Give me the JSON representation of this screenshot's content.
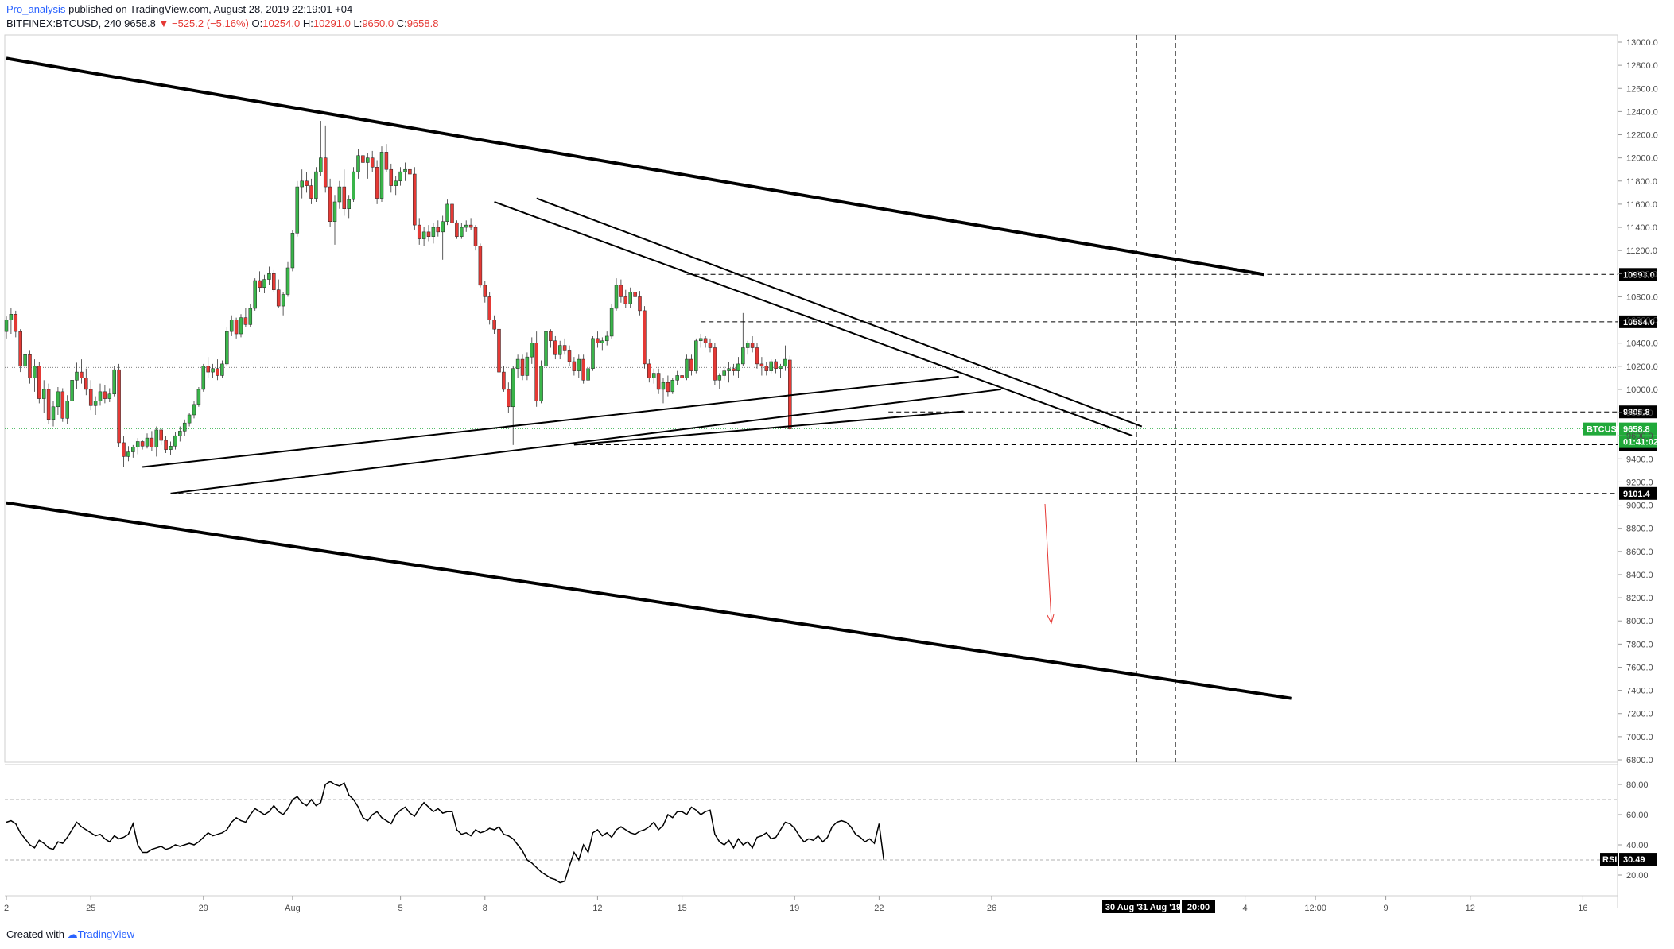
{
  "header": {
    "author": "Pro_analysis",
    "published": "published on TradingView.com, August 28, 2019 22:19:01 +04",
    "symbol": "BITFINEX:BTCUSD, 240",
    "price": "9658.8",
    "change_arrow": "▼",
    "change": "−525.2 (−5.16%)",
    "ohlc": {
      "o_label": "O:",
      "o": "10254.0",
      "h_label": "H:",
      "h": "10291.0",
      "l_label": "L:",
      "l": "9650.0",
      "c_label": "C:",
      "c": "9658.8"
    }
  },
  "footer": {
    "created_with": "Created with",
    "brand": "TradingView"
  },
  "colors": {
    "up": "#26a69a",
    "down": "#ef5350",
    "candle_up": "#3ab54a",
    "candle_down": "#e53935",
    "line": "#000000",
    "price_label": "#21a93a",
    "rsi": "#000000"
  },
  "chart_data": {
    "type": "candlestick",
    "y_axis": {
      "min": 6800,
      "max": 13000,
      "ticks": [
        "13000.0",
        "12800.0",
        "12600.0",
        "12400.0",
        "12200.0",
        "12000.0",
        "11800.0",
        "11600.0",
        "11400.0",
        "11200.0",
        "11000.0",
        "10800.0",
        "10600.0",
        "10400.0",
        "10200.0",
        "10000.0",
        "9800.0",
        "9600.0",
        "9400.0",
        "9200.0",
        "9000.0",
        "8800.0",
        "8600.0",
        "8400.0",
        "8200.0",
        "8000.0",
        "7800.0",
        "7600.0",
        "7400.0",
        "7200.0",
        "7000.0",
        "6800.0"
      ]
    },
    "x_axis": {
      "ticks": [
        {
          "label": "2",
          "i": 0
        },
        {
          "label": "25",
          "i": 18
        },
        {
          "label": "29",
          "i": 42
        },
        {
          "label": "Aug",
          "i": 61
        },
        {
          "label": "5",
          "i": 84
        },
        {
          "label": "8",
          "i": 102
        },
        {
          "label": "12",
          "i": 126
        },
        {
          "label": "15",
          "i": 144
        },
        {
          "label": "19",
          "i": 168
        },
        {
          "label": "22",
          "i": 186
        },
        {
          "label": "26",
          "i": 210
        },
        {
          "label": "4",
          "i": 264
        },
        {
          "label": "12:00",
          "i": 279
        },
        {
          "label": "9",
          "i": 294
        },
        {
          "label": "12",
          "i": 312
        },
        {
          "label": "16",
          "i": 336
        }
      ],
      "date_labels": [
        "30 Aug '19",
        "31 Aug '19",
        "20:00"
      ]
    },
    "candles": [
      [
        10500,
        10630,
        10440,
        10600
      ],
      [
        10600,
        10700,
        10480,
        10650
      ],
      [
        10650,
        10680,
        10450,
        10500
      ],
      [
        10500,
        10520,
        10150,
        10200
      ],
      [
        10200,
        10380,
        10100,
        10300
      ],
      [
        10300,
        10340,
        10050,
        10100
      ],
      [
        10100,
        10260,
        9980,
        10200
      ],
      [
        10200,
        10240,
        9880,
        9920
      ],
      [
        9920,
        10080,
        9800,
        10000
      ],
      [
        10000,
        10050,
        9700,
        9740
      ],
      [
        9740,
        9900,
        9680,
        9850
      ],
      [
        9850,
        10020,
        9780,
        9980
      ],
      [
        9980,
        10010,
        9720,
        9750
      ],
      [
        9750,
        9950,
        9700,
        9900
      ],
      [
        9900,
        10120,
        9860,
        10080
      ],
      [
        10080,
        10230,
        10000,
        10150
      ],
      [
        10150,
        10260,
        10050,
        10100
      ],
      [
        10100,
        10180,
        9950,
        10000
      ],
      [
        10000,
        10080,
        9820,
        9860
      ],
      [
        9860,
        9940,
        9780,
        9900
      ],
      [
        9900,
        10050,
        9860,
        9980
      ],
      [
        9980,
        10040,
        9880,
        9920
      ],
      [
        9920,
        10010,
        9890,
        9960
      ],
      [
        9960,
        10200,
        9940,
        10170
      ],
      [
        10170,
        10220,
        9500,
        9540
      ],
      [
        9540,
        9600,
        9330,
        9420
      ],
      [
        9420,
        9510,
        9380,
        9460
      ],
      [
        9460,
        9520,
        9410,
        9500
      ],
      [
        9500,
        9580,
        9440,
        9550
      ],
      [
        9550,
        9560,
        9480,
        9510
      ],
      [
        9510,
        9620,
        9490,
        9580
      ],
      [
        9580,
        9640,
        9470,
        9500
      ],
      [
        9500,
        9680,
        9420,
        9650
      ],
      [
        9650,
        9670,
        9520,
        9560
      ],
      [
        9560,
        9600,
        9450,
        9480
      ],
      [
        9480,
        9550,
        9430,
        9510
      ],
      [
        9510,
        9630,
        9480,
        9600
      ],
      [
        9600,
        9680,
        9550,
        9640
      ],
      [
        9640,
        9740,
        9600,
        9710
      ],
      [
        9710,
        9800,
        9680,
        9780
      ],
      [
        9780,
        9900,
        9750,
        9870
      ],
      [
        9870,
        10020,
        9850,
        10000
      ],
      [
        10000,
        10220,
        9980,
        10200
      ],
      [
        10200,
        10280,
        10100,
        10150
      ],
      [
        10150,
        10220,
        10100,
        10180
      ],
      [
        10180,
        10260,
        10080,
        10120
      ],
      [
        10120,
        10250,
        10100,
        10220
      ],
      [
        10220,
        10540,
        10200,
        10500
      ],
      [
        10500,
        10640,
        10460,
        10600
      ],
      [
        10600,
        10620,
        10440,
        10480
      ],
      [
        10480,
        10650,
        10450,
        10620
      ],
      [
        10620,
        10700,
        10540,
        10560
      ],
      [
        10560,
        10740,
        10540,
        10700
      ],
      [
        10700,
        10960,
        10680,
        10940
      ],
      [
        10940,
        11020,
        10840,
        10880
      ],
      [
        10880,
        10990,
        10830,
        10950
      ],
      [
        10950,
        11060,
        10900,
        11000
      ],
      [
        11000,
        11030,
        10840,
        10860
      ],
      [
        10860,
        10950,
        10700,
        10720
      ],
      [
        10720,
        10840,
        10640,
        10820
      ],
      [
        10820,
        11100,
        10800,
        11050
      ],
      [
        11050,
        11380,
        11020,
        11350
      ],
      [
        11350,
        11800,
        11320,
        11750
      ],
      [
        11750,
        11900,
        11650,
        11800
      ],
      [
        11800,
        11880,
        11700,
        11760
      ],
      [
        11760,
        11820,
        11600,
        11650
      ],
      [
        11650,
        11920,
        11620,
        11880
      ],
      [
        11880,
        12320,
        11840,
        12000
      ],
      [
        12000,
        12280,
        11700,
        11750
      ],
      [
        11750,
        11820,
        11400,
        11450
      ],
      [
        11450,
        11680,
        11250,
        11620
      ],
      [
        11620,
        11800,
        11560,
        11750
      ],
      [
        11750,
        11900,
        11500,
        11560
      ],
      [
        11560,
        11680,
        11480,
        11640
      ],
      [
        11640,
        11920,
        11620,
        11880
      ],
      [
        11880,
        12080,
        11820,
        12020
      ],
      [
        12020,
        12080,
        11900,
        11960
      ],
      [
        11960,
        12040,
        11820,
        12000
      ],
      [
        12000,
        12060,
        11880,
        11920
      ],
      [
        11920,
        11980,
        11600,
        11650
      ],
      [
        11650,
        12100,
        11620,
        12050
      ],
      [
        12050,
        12120,
        11880,
        11900
      ],
      [
        11900,
        11950,
        11700,
        11760
      ],
      [
        11760,
        11840,
        11680,
        11800
      ],
      [
        11800,
        11920,
        11760,
        11880
      ],
      [
        11880,
        11960,
        11800,
        11900
      ],
      [
        11900,
        11940,
        11820,
        11860
      ],
      [
        11860,
        11920,
        11380,
        11420
      ],
      [
        11420,
        11480,
        11250,
        11300
      ],
      [
        11300,
        11400,
        11240,
        11360
      ],
      [
        11360,
        11420,
        11280,
        11320
      ],
      [
        11320,
        11440,
        11260,
        11400
      ],
      [
        11400,
        11460,
        11320,
        11360
      ],
      [
        11360,
        11500,
        11120,
        11450
      ],
      [
        11450,
        11640,
        11420,
        11600
      ],
      [
        11600,
        11620,
        11400,
        11440
      ],
      [
        11440,
        11460,
        11300,
        11320
      ],
      [
        11320,
        11440,
        11300,
        11400
      ],
      [
        11400,
        11460,
        11360,
        11420
      ],
      [
        11420,
        11480,
        11380,
        11400
      ],
      [
        11400,
        11420,
        11200,
        11240
      ],
      [
        11240,
        11260,
        10880,
        10900
      ],
      [
        10900,
        10940,
        10750,
        10800
      ],
      [
        10800,
        10840,
        10560,
        10600
      ],
      [
        10600,
        10640,
        10480,
        10520
      ],
      [
        10520,
        10560,
        10100,
        10150
      ],
      [
        10150,
        10200,
        9980,
        10000
      ],
      [
        10000,
        10060,
        9800,
        9850
      ],
      [
        9850,
        10200,
        9520,
        10180
      ],
      [
        10180,
        10300,
        10100,
        10260
      ],
      [
        10260,
        10300,
        10080,
        10120
      ],
      [
        10120,
        10320,
        10080,
        10280
      ],
      [
        10280,
        10450,
        10220,
        10400
      ],
      [
        10400,
        10500,
        9850,
        9900
      ],
      [
        9900,
        10250,
        9880,
        10200
      ],
      [
        10200,
        10560,
        10180,
        10500
      ],
      [
        10500,
        10520,
        10360,
        10420
      ],
      [
        10420,
        10460,
        10260,
        10300
      ],
      [
        10300,
        10420,
        10260,
        10380
      ],
      [
        10380,
        10440,
        10300,
        10340
      ],
      [
        10340,
        10380,
        10200,
        10240
      ],
      [
        10240,
        10280,
        10120,
        10160
      ],
      [
        10160,
        10300,
        10100,
        10260
      ],
      [
        10260,
        10300,
        10050,
        10080
      ],
      [
        10080,
        10220,
        10040,
        10180
      ],
      [
        10180,
        10460,
        10160,
        10440
      ],
      [
        10440,
        10500,
        10360,
        10400
      ],
      [
        10400,
        10450,
        10340,
        10420
      ],
      [
        10420,
        10500,
        10380,
        10460
      ],
      [
        10460,
        10740,
        10440,
        10700
      ],
      [
        10700,
        10960,
        10680,
        10900
      ],
      [
        10900,
        10950,
        10750,
        10800
      ],
      [
        10800,
        10860,
        10700,
        10740
      ],
      [
        10740,
        10880,
        10700,
        10840
      ],
      [
        10840,
        10900,
        10760,
        10800
      ],
      [
        10800,
        10850,
        10640,
        10680
      ],
      [
        10680,
        10720,
        10180,
        10220
      ],
      [
        10220,
        10260,
        10060,
        10100
      ],
      [
        10100,
        10180,
        10050,
        10140
      ],
      [
        10140,
        10180,
        9960,
        10000
      ],
      [
        10000,
        10100,
        9880,
        10060
      ],
      [
        10060,
        10120,
        9940,
        9980
      ],
      [
        9980,
        10100,
        9960,
        10080
      ],
      [
        10080,
        10160,
        10040,
        10120
      ],
      [
        10120,
        10180,
        10060,
        10100
      ],
      [
        10100,
        10300,
        10080,
        10260
      ],
      [
        10260,
        10300,
        10120,
        10160
      ],
      [
        10160,
        10440,
        10140,
        10420
      ],
      [
        10420,
        10480,
        10360,
        10440
      ],
      [
        10440,
        10460,
        10360,
        10400
      ],
      [
        10400,
        10440,
        10320,
        10360
      ],
      [
        10360,
        10400,
        10040,
        10080
      ],
      [
        10080,
        10140,
        10000,
        10120
      ],
      [
        10120,
        10200,
        10080,
        10160
      ],
      [
        10160,
        10240,
        10060,
        10180
      ],
      [
        10180,
        10220,
        10120,
        10160
      ],
      [
        10160,
        10280,
        10100,
        10220
      ],
      [
        10220,
        10660,
        10200,
        10360
      ],
      [
        10360,
        10420,
        10300,
        10400
      ],
      [
        10400,
        10460,
        10320,
        10360
      ],
      [
        10360,
        10400,
        10180,
        10220
      ],
      [
        10220,
        10280,
        10120,
        10200
      ],
      [
        10200,
        10240,
        10120,
        10160
      ],
      [
        10160,
        10260,
        10140,
        10240
      ],
      [
        10240,
        10260,
        10140,
        10180
      ],
      [
        10180,
        10220,
        10100,
        10200
      ],
      [
        10200,
        10380,
        10160,
        10260
      ],
      [
        10254,
        10291,
        9650,
        9658.8
      ]
    ],
    "lines": [
      {
        "name": "upper-channel",
        "from": {
          "i": 0,
          "p": 12860
        },
        "to": {
          "i": 268,
          "p": 10993
        }
      },
      {
        "name": "lower-channel",
        "from": {
          "i": 0,
          "p": 9020
        },
        "to": {
          "i": 274,
          "p": 7330
        }
      },
      {
        "name": "support-1",
        "from": {
          "i": 29,
          "p": 9330
        },
        "to": {
          "i": 203,
          "p": 10110
        }
      },
      {
        "name": "support-2",
        "from": {
          "i": 35,
          "p": 9101.4
        },
        "to": {
          "i": 212,
          "p": 10000
        }
      },
      {
        "name": "resistance-1",
        "from": {
          "i": 104,
          "p": 11620
        },
        "to": {
          "i": 240,
          "p": 9600
        }
      },
      {
        "name": "resistance-2",
        "from": {
          "i": 113,
          "p": 11650
        },
        "to": {
          "i": 242,
          "p": 9680
        }
      },
      {
        "name": "pattern-low",
        "from": {
          "i": 121,
          "p": 9522
        },
        "to": {
          "i": 204,
          "p": 9810
        }
      }
    ],
    "levels": [
      {
        "value": "10993.0",
        "p": 10993,
        "from_i": 145
      },
      {
        "value": "10584.0",
        "p": 10584,
        "from_i": 148
      },
      {
        "value": "9805.8",
        "p": 9805.8,
        "from_i": 188
      },
      {
        "value": "9522.0",
        "p": 9522,
        "from_i": 121
      },
      {
        "value": "9101.4",
        "p": 9101.4,
        "from_i": 35
      }
    ],
    "current": {
      "symbol": "BTCUSD",
      "price": "9658.8",
      "countdown": "01:41:02"
    },
    "rsi": {
      "label": "RSI",
      "value": "30.49",
      "ticks": [
        "80.00",
        "60.00",
        "40.00",
        "20.00"
      ],
      "bands": [
        70,
        30
      ],
      "values": [
        55,
        56,
        54,
        48,
        44,
        40,
        38,
        43,
        41,
        38,
        37,
        42,
        41,
        45,
        50,
        55,
        52,
        50,
        48,
        46,
        47,
        44,
        42,
        46,
        44,
        45,
        47,
        54,
        40,
        35,
        35,
        37,
        38,
        39,
        37,
        38,
        40,
        39,
        40,
        41,
        40,
        42,
        45,
        48,
        46,
        47,
        48,
        50,
        55,
        58,
        56,
        55,
        60,
        64,
        62,
        60,
        62,
        66,
        62,
        60,
        64,
        70,
        72,
        68,
        66,
        70,
        66,
        68,
        80,
        82,
        80,
        79,
        81,
        73,
        70,
        65,
        58,
        56,
        60,
        62,
        58,
        56,
        54,
        60,
        63,
        65,
        61,
        59,
        64,
        68,
        65,
        62,
        64,
        61,
        62,
        62,
        50,
        47,
        48,
        46,
        50,
        48,
        49,
        51,
        50,
        52,
        47,
        46,
        44,
        40,
        36,
        30,
        28,
        25,
        22,
        20,
        18,
        17,
        15,
        16,
        26,
        35,
        30,
        40,
        35,
        48,
        50,
        46,
        48,
        45,
        50,
        52,
        50,
        48,
        47,
        49,
        50,
        52,
        55,
        50,
        53,
        60,
        58,
        62,
        62,
        60,
        65,
        63,
        60,
        62,
        63,
        47,
        42,
        40,
        43,
        38,
        44,
        40,
        42,
        38,
        45,
        46,
        48,
        44,
        45,
        50,
        55,
        54,
        51,
        46,
        42,
        44,
        43,
        46,
        42,
        45,
        52,
        55,
        56,
        55,
        52,
        47,
        45,
        42,
        44,
        41,
        54,
        30
      ]
    }
  }
}
